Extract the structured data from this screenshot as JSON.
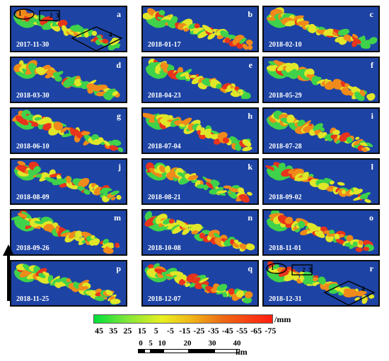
{
  "panels": [
    {
      "label": "a",
      "date": "2017-11-30",
      "annotated": true
    },
    {
      "label": "b",
      "date": "2018-01-17"
    },
    {
      "label": "c",
      "date": "2018-02-10"
    },
    {
      "label": "d",
      "date": "2018-03-30"
    },
    {
      "label": "e",
      "date": "2018-04-23"
    },
    {
      "label": "f",
      "date": "2018-05-29"
    },
    {
      "label": "g",
      "date": "2018-06-10"
    },
    {
      "label": "h",
      "date": "2018-07-04"
    },
    {
      "label": "i",
      "date": "2018-07-28"
    },
    {
      "label": "j",
      "date": "2018-08-09"
    },
    {
      "label": "k",
      "date": "2018-08-21"
    },
    {
      "label": "l",
      "date": "2018-09-02"
    },
    {
      "label": "m",
      "date": "2018-09-26"
    },
    {
      "label": "n",
      "date": "2018-10-08"
    },
    {
      "label": "o",
      "date": "2018-11-01"
    },
    {
      "label": "p",
      "date": "2018-11-25"
    },
    {
      "label": "q",
      "date": "2018-12-07"
    },
    {
      "label": "r",
      "date": "2018-12-31",
      "annotated": true
    }
  ],
  "annotation_numbers": [
    "1",
    "2",
    "3",
    "4"
  ],
  "colorbar": {
    "ticks": [
      "45",
      "35",
      "25",
      "15",
      "5",
      "-5",
      "-15",
      "-25",
      "-35",
      "-45",
      "-55",
      "-65",
      "-75"
    ],
    "unit": "/mm",
    "colors": [
      "#00e03a",
      "#e8f020",
      "#ff1c10"
    ]
  },
  "scale": {
    "ticks": [
      "0",
      "5",
      "10",
      "20",
      "30",
      "40"
    ],
    "unit": "km"
  },
  "colors": {
    "background": "#1d44a4",
    "land_green": "#3fd24a",
    "land_yellow": "#e0e628",
    "land_orange": "#f08a1a",
    "land_red": "#e8341c"
  },
  "north_arrow": "up-arrow"
}
